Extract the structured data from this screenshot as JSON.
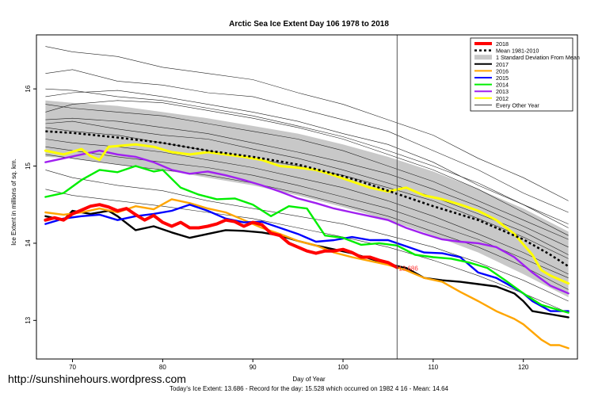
{
  "watermark": "http://sunshinehours.wordpress.com",
  "chart_data": {
    "type": "line",
    "title": "Arctic Sea Ice Extent Day 106 1978 to 2018",
    "xlabel": "Day of Year",
    "ylabel": "Ice Extent in millions of sq. km.",
    "footer": "Today's Ice Extent: 13.686  - Record for the day: 15.528 which occurred on 1982 4 16  - Mean: 14.64",
    "current_day_marker": 106,
    "current_value_label": "13.686",
    "xlim": [
      66,
      126
    ],
    "ylim": [
      12.5,
      16.7
    ],
    "xticks": [
      70,
      80,
      90,
      100,
      110,
      120
    ],
    "yticks": [
      13,
      14,
      15,
      16
    ],
    "grid": false,
    "legend_position": "top-right",
    "legend": [
      {
        "label": "2018",
        "color": "#ff0000",
        "style": "thick"
      },
      {
        "label": "Mean 1981-2010",
        "color": "#000000",
        "style": "dotted"
      },
      {
        "label": "1 Standard Deviation From Mean",
        "color": "#c8c8c8",
        "style": "band"
      },
      {
        "label": "2017",
        "color": "#000000",
        "style": "solid"
      },
      {
        "label": "2016",
        "color": "#ffa500",
        "style": "solid"
      },
      {
        "label": "2015",
        "color": "#0000ff",
        "style": "solid"
      },
      {
        "label": "2014",
        "color": "#00ee00",
        "style": "solid"
      },
      {
        "label": "2013",
        "color": "#a020f0",
        "style": "solid"
      },
      {
        "label": "2012",
        "color": "#ffff00",
        "style": "solid"
      },
      {
        "label": "Every Other Year",
        "color": "#000000",
        "style": "thin"
      }
    ],
    "mean": {
      "x": [
        67,
        70,
        75,
        80,
        85,
        90,
        95,
        100,
        103,
        106,
        110,
        115,
        120,
        123,
        125
      ],
      "y": [
        15.45,
        15.43,
        15.37,
        15.3,
        15.2,
        15.12,
        15.02,
        14.87,
        14.76,
        14.64,
        14.48,
        14.3,
        14.05,
        13.85,
        13.7
      ]
    },
    "sd_band": {
      "x": [
        67,
        70,
        75,
        80,
        85,
        90,
        95,
        100,
        105,
        110,
        115,
        120,
        125
      ],
      "upper": [
        15.85,
        15.82,
        15.78,
        15.7,
        15.62,
        15.52,
        15.42,
        15.28,
        15.12,
        14.93,
        14.7,
        14.45,
        14.15
      ],
      "lower": [
        15.12,
        15.1,
        15.02,
        14.95,
        14.85,
        14.75,
        14.62,
        14.47,
        14.3,
        14.1,
        13.88,
        13.6,
        13.3
      ]
    },
    "series": [
      {
        "name": "2018",
        "color": "#ff0000",
        "width": 4,
        "x": [
          67,
          68,
          69,
          70,
          71,
          72,
          73,
          74,
          75,
          76,
          77,
          78,
          79,
          80,
          81,
          82,
          83,
          84,
          85,
          86,
          87,
          88,
          89,
          90,
          91,
          92,
          93,
          94,
          95,
          96,
          97,
          98,
          99,
          100,
          101,
          102,
          103,
          104,
          105,
          106
        ],
        "y": [
          14.3,
          14.33,
          14.3,
          14.38,
          14.43,
          14.48,
          14.5,
          14.47,
          14.42,
          14.45,
          14.37,
          14.3,
          14.36,
          14.27,
          14.22,
          14.27,
          14.2,
          14.2,
          14.22,
          14.25,
          14.3,
          14.28,
          14.22,
          14.27,
          14.24,
          14.13,
          14.1,
          14.0,
          13.95,
          13.9,
          13.87,
          13.9,
          13.9,
          13.92,
          13.88,
          13.82,
          13.82,
          13.78,
          13.75,
          13.686
        ]
      },
      {
        "name": "2017",
        "color": "#000000",
        "width": 2.4,
        "x": [
          67,
          69,
          70,
          72,
          74,
          75,
          77,
          79,
          81,
          83,
          85,
          87,
          89,
          91,
          93,
          95,
          97,
          99,
          101,
          103,
          105,
          107,
          109,
          111,
          113,
          115,
          117,
          119,
          120,
          121,
          123,
          125
        ],
        "y": [
          14.35,
          14.3,
          14.42,
          14.38,
          14.42,
          14.35,
          14.17,
          14.22,
          14.14,
          14.07,
          14.12,
          14.17,
          14.16,
          14.14,
          14.1,
          14.03,
          13.97,
          13.92,
          13.87,
          13.8,
          13.73,
          13.68,
          13.55,
          13.52,
          13.5,
          13.47,
          13.44,
          13.35,
          13.25,
          13.12,
          13.08,
          13.04
        ]
      },
      {
        "name": "2016",
        "color": "#ffa500",
        "width": 2.4,
        "x": [
          67,
          69,
          71,
          73,
          75,
          77,
          79,
          81,
          83,
          85,
          87,
          89,
          91,
          93,
          95,
          97,
          99,
          101,
          103,
          105,
          107,
          109,
          111,
          113,
          115,
          117,
          119,
          120,
          121,
          122,
          123,
          124,
          125
        ],
        "y": [
          14.4,
          14.37,
          14.4,
          14.45,
          14.4,
          14.48,
          14.44,
          14.57,
          14.52,
          14.45,
          14.4,
          14.3,
          14.2,
          14.12,
          14.03,
          13.97,
          13.88,
          13.82,
          13.77,
          13.72,
          13.65,
          13.55,
          13.5,
          13.37,
          13.25,
          13.12,
          13.02,
          12.95,
          12.85,
          12.75,
          12.68,
          12.68,
          12.64
        ]
      },
      {
        "name": "2015",
        "color": "#0000ff",
        "width": 2.4,
        "x": [
          67,
          69,
          71,
          73,
          75,
          77,
          79,
          81,
          83,
          85,
          87,
          89,
          91,
          93,
          95,
          97,
          99,
          101,
          103,
          105,
          107,
          109,
          111,
          113,
          115,
          117,
          119,
          120,
          121,
          123,
          125
        ],
        "y": [
          14.25,
          14.32,
          14.35,
          14.37,
          14.3,
          14.35,
          14.38,
          14.42,
          14.5,
          14.42,
          14.32,
          14.27,
          14.28,
          14.2,
          14.12,
          14.02,
          14.04,
          14.08,
          14.04,
          14.04,
          13.96,
          13.88,
          13.87,
          13.82,
          13.62,
          13.55,
          13.42,
          13.35,
          13.25,
          13.12,
          13.12
        ]
      },
      {
        "name": "2014",
        "color": "#00ee00",
        "width": 2.4,
        "x": [
          67,
          69,
          71,
          73,
          75,
          77,
          79,
          80,
          82,
          84,
          86,
          88,
          90,
          92,
          94,
          96,
          98,
          100,
          102,
          104,
          106,
          108,
          110,
          112,
          114,
          116,
          118,
          120,
          122,
          125
        ],
        "y": [
          14.6,
          14.65,
          14.82,
          14.95,
          14.92,
          15.0,
          14.93,
          14.95,
          14.72,
          14.63,
          14.57,
          14.58,
          14.5,
          14.35,
          14.48,
          14.45,
          14.1,
          14.07,
          13.98,
          14.0,
          13.97,
          13.85,
          13.82,
          13.8,
          13.75,
          13.68,
          13.52,
          13.35,
          13.2,
          13.1
        ]
      },
      {
        "name": "2013",
        "color": "#a020f0",
        "width": 2.4,
        "x": [
          67,
          69,
          71,
          73,
          75,
          77,
          79,
          81,
          83,
          85,
          87,
          89,
          91,
          93,
          95,
          97,
          99,
          101,
          103,
          105,
          107,
          109,
          111,
          113,
          115,
          117,
          119,
          121,
          123,
          125
        ],
        "y": [
          15.05,
          15.1,
          15.15,
          15.2,
          15.15,
          15.12,
          15.05,
          14.95,
          14.9,
          14.93,
          14.88,
          14.82,
          14.75,
          14.67,
          14.58,
          14.52,
          14.45,
          14.4,
          14.35,
          14.3,
          14.2,
          14.12,
          14.05,
          14.02,
          14.0,
          13.95,
          13.82,
          13.62,
          13.45,
          13.35
        ]
      },
      {
        "name": "2012",
        "color": "#ffff00",
        "width": 3,
        "x": [
          67,
          69,
          71,
          72,
          73,
          74,
          75,
          77,
          79,
          81,
          83,
          85,
          87,
          89,
          91,
          93,
          95,
          97,
          99,
          101,
          103,
          105,
          107,
          109,
          111,
          113,
          115,
          117,
          119,
          121,
          122,
          123,
          125
        ],
        "y": [
          15.2,
          15.15,
          15.22,
          15.13,
          15.08,
          15.25,
          15.26,
          15.28,
          15.25,
          15.18,
          15.15,
          15.18,
          15.15,
          15.12,
          15.08,
          15.0,
          14.98,
          14.95,
          14.88,
          14.8,
          14.72,
          14.67,
          14.72,
          14.62,
          14.57,
          14.5,
          14.42,
          14.3,
          14.12,
          13.85,
          13.65,
          13.58,
          13.48
        ]
      }
    ],
    "other_years": [
      {
        "x": [
          67,
          70,
          75,
          80,
          85,
          90,
          95,
          100,
          105,
          110,
          115,
          120,
          125
        ],
        "y": [
          16.55,
          16.48,
          16.42,
          16.28,
          16.2,
          16.12,
          15.95,
          15.8,
          15.6,
          15.4,
          15.1,
          14.85,
          14.55
        ]
      },
      {
        "x": [
          67,
          70,
          75,
          80,
          85,
          90,
          95,
          100,
          105,
          110,
          115,
          120,
          125
        ],
        "y": [
          16.2,
          16.25,
          16.1,
          16.05,
          15.95,
          15.9,
          15.75,
          15.6,
          15.45,
          15.2,
          14.95,
          14.65,
          14.4
        ]
      },
      {
        "x": [
          67,
          70,
          75,
          80,
          85,
          90,
          95,
          100,
          105,
          110,
          115,
          120,
          125
        ],
        "y": [
          15.9,
          15.95,
          15.98,
          15.9,
          15.8,
          15.7,
          15.58,
          15.42,
          15.28,
          15.05,
          14.75,
          14.5,
          14.2
        ]
      },
      {
        "x": [
          67,
          70,
          75,
          80,
          85,
          90,
          95,
          100,
          105,
          110,
          115,
          120,
          125
        ],
        "y": [
          15.8,
          15.75,
          15.7,
          15.65,
          15.55,
          15.45,
          15.35,
          15.2,
          15.0,
          14.8,
          14.55,
          14.3,
          14.05
        ]
      },
      {
        "x": [
          67,
          70,
          75,
          80,
          85,
          90,
          95,
          100,
          105,
          110,
          115,
          120,
          125
        ],
        "y": [
          15.6,
          15.62,
          15.58,
          15.5,
          15.42,
          15.3,
          15.18,
          15.05,
          14.9,
          14.7,
          14.48,
          14.22,
          13.95
        ]
      },
      {
        "x": [
          67,
          70,
          75,
          80,
          85,
          90,
          95,
          100,
          105,
          110,
          115,
          120,
          125
        ],
        "y": [
          15.5,
          15.45,
          15.4,
          15.3,
          15.2,
          15.1,
          15.0,
          14.88,
          14.72,
          14.55,
          14.32,
          14.08,
          13.8
        ]
      },
      {
        "x": [
          67,
          70,
          75,
          80,
          85,
          90,
          95,
          100,
          105,
          110,
          115,
          120,
          125
        ],
        "y": [
          15.35,
          15.3,
          15.25,
          15.18,
          15.08,
          14.98,
          14.85,
          14.72,
          14.55,
          14.35,
          14.12,
          13.88,
          13.6
        ]
      },
      {
        "x": [
          67,
          70,
          75,
          80,
          85,
          90,
          95,
          100,
          105,
          110,
          115,
          120,
          125
        ],
        "y": [
          15.15,
          15.1,
          15.02,
          14.95,
          14.88,
          14.78,
          14.65,
          14.5,
          14.35,
          14.15,
          13.95,
          13.7,
          13.4
        ]
      },
      {
        "x": [
          67,
          70,
          75,
          80,
          85,
          90,
          95,
          100,
          105,
          110,
          115,
          120,
          125
        ],
        "y": [
          14.95,
          14.85,
          14.75,
          14.68,
          14.55,
          14.45,
          14.35,
          14.25,
          14.1,
          13.95,
          13.75,
          13.52,
          13.25
        ]
      },
      {
        "x": [
          67,
          70,
          75,
          80,
          85,
          90,
          95,
          100,
          105,
          110,
          115,
          120,
          125
        ],
        "y": [
          14.7,
          14.62,
          14.55,
          14.48,
          14.4,
          14.32,
          14.2,
          14.08,
          13.95,
          13.78,
          13.58,
          13.35,
          13.1
        ]
      },
      {
        "x": [
          67,
          70,
          75,
          80,
          85,
          90,
          95,
          100,
          105,
          110,
          115,
          120,
          125
        ],
        "y": [
          15.7,
          15.8,
          15.85,
          15.82,
          15.72,
          15.62,
          15.5,
          15.35,
          15.15,
          14.95,
          14.7,
          14.4,
          14.1
        ]
      },
      {
        "x": [
          67,
          70,
          75,
          80,
          85,
          90,
          95,
          100,
          105,
          110,
          115,
          120,
          125
        ],
        "y": [
          15.55,
          15.58,
          15.48,
          15.4,
          15.35,
          15.22,
          15.1,
          14.95,
          14.78,
          14.6,
          14.38,
          14.15,
          13.85
        ]
      },
      {
        "x": [
          67,
          70,
          75,
          80,
          85,
          90,
          95,
          100,
          105,
          110,
          115,
          120,
          125
        ],
        "y": [
          16.0,
          15.98,
          15.9,
          15.85,
          15.75,
          15.65,
          15.52,
          15.38,
          15.2,
          15.0,
          14.78,
          14.5,
          14.25
        ]
      },
      {
        "x": [
          67,
          70,
          75,
          80,
          85,
          90,
          95,
          100,
          105,
          110,
          115,
          120,
          125
        ],
        "y": [
          15.25,
          15.2,
          15.12,
          15.05,
          14.98,
          14.88,
          14.75,
          14.6,
          14.45,
          14.25,
          14.05,
          13.8,
          13.55
        ]
      }
    ]
  }
}
